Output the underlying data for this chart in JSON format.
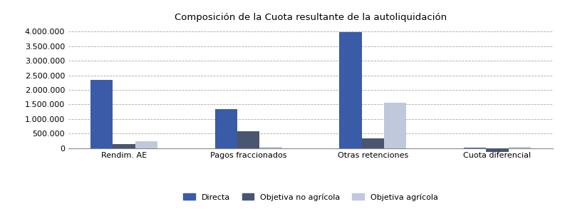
{
  "title": "Composición de la Cuota resultante de la autoliquidación",
  "categories": [
    "Rendim. AE",
    "Pagos fraccionados",
    "Otras retenciones",
    "Cuota diferencial"
  ],
  "series": {
    "Directa": [
      2350000,
      1340000,
      3970000,
      30000
    ],
    "Objetiva no agrícola": [
      145000,
      580000,
      330000,
      -130000
    ],
    "Objetiva agrícola": [
      250000,
      50000,
      1570000,
      55000
    ]
  },
  "colors": {
    "Directa": "#3A5BA8",
    "Objetiva no agrícola": "#4A5570",
    "Objetiva agrícola": "#C0C8DC"
  },
  "ylim": [
    -200000,
    4200000
  ],
  "yticks": [
    0,
    500000,
    1000000,
    1500000,
    2000000,
    2500000,
    3000000,
    3500000,
    4000000
  ],
  "bar_width": 0.18,
  "background_color": "#FFFFFF",
  "grid_color": "#AAAAAA",
  "legend_labels": [
    "Directa",
    "Objetiva no agrícola",
    "Objetiva agrícola"
  ],
  "title_fontsize": 9.5
}
